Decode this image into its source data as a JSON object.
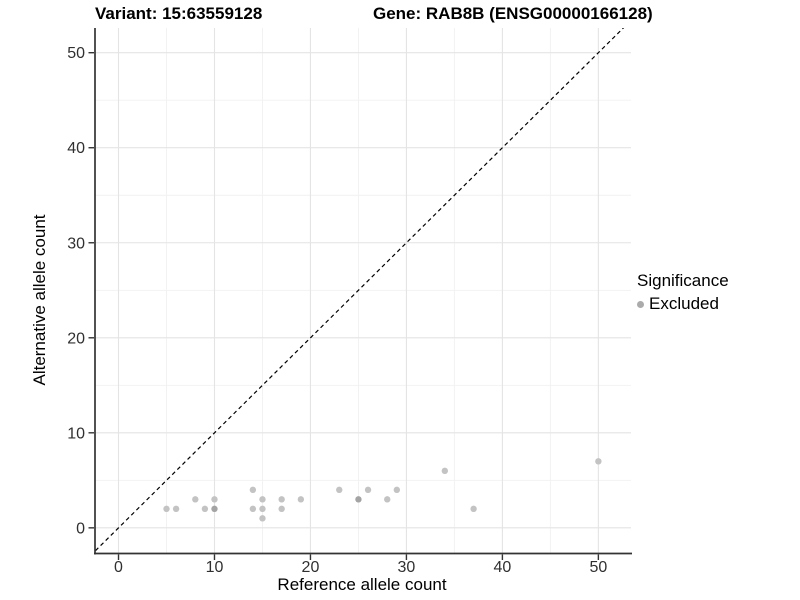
{
  "header": {
    "variant_title": "Variant: 15:63559128",
    "gene_title": "Gene: RAB8B (ENSG00000166128)"
  },
  "chart_data": {
    "type": "scatter",
    "xlabel": "Reference allele count",
    "ylabel": "Alternative allele count",
    "xlim": [
      -2.45,
      53.4
    ],
    "ylim": [
      -2.7,
      52.6
    ],
    "xticks": [
      0,
      10,
      20,
      30,
      40,
      50
    ],
    "yticks": [
      0,
      10,
      20,
      30,
      40,
      50
    ],
    "minor_xticks": [
      5,
      15,
      25,
      35,
      45
    ],
    "minor_yticks": [
      5,
      15,
      25,
      35,
      45
    ],
    "grid": true,
    "identity_line": {
      "equation": "y = x",
      "style": "dashed",
      "color": "#000000"
    },
    "series": [
      {
        "name": "Excluded",
        "color": "#c3c3c3",
        "color_overplotted": "#a4a4a4",
        "points": [
          [
            5,
            2,
            1
          ],
          [
            6,
            2,
            1
          ],
          [
            8,
            3,
            1
          ],
          [
            9,
            2,
            1
          ],
          [
            10,
            2,
            2
          ],
          [
            10,
            3,
            1
          ],
          [
            14,
            2,
            1
          ],
          [
            14,
            4,
            1
          ],
          [
            15,
            1,
            1
          ],
          [
            15,
            2,
            1
          ],
          [
            15,
            3,
            1
          ],
          [
            17,
            2,
            1
          ],
          [
            17,
            3,
            1
          ],
          [
            19,
            3,
            1
          ],
          [
            23,
            4,
            1
          ],
          [
            25,
            3,
            2
          ],
          [
            26,
            4,
            1
          ],
          [
            28,
            3,
            1
          ],
          [
            29,
            4,
            1
          ],
          [
            34,
            6,
            1
          ],
          [
            37,
            2,
            1
          ],
          [
            50,
            7,
            1
          ]
        ]
      }
    ],
    "legend": {
      "title": "Significance",
      "position": "right",
      "items": [
        {
          "label": "Excluded",
          "color": "#ababab"
        }
      ]
    }
  },
  "colors": {
    "background": "#ffffff",
    "grid_major": "#e4e4e4",
    "grid_minor": "#f1f1f1",
    "axis_line": "#333333",
    "tick_label": "#303030",
    "title": "#000000"
  }
}
